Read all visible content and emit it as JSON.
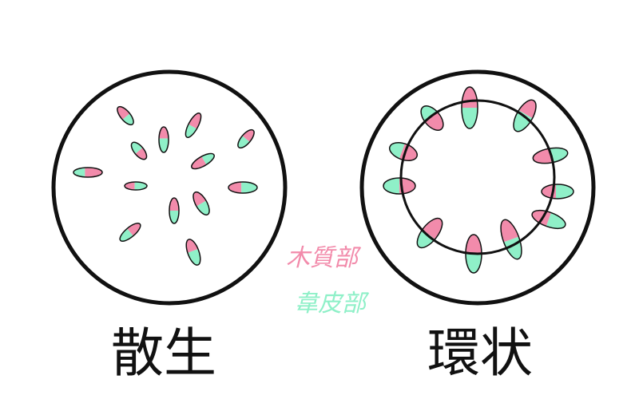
{
  "labels": {
    "scattered": "散生",
    "ring": "環状",
    "xylem": "木質部",
    "phloem": "韋皮部"
  },
  "colors": {
    "xylem": "#f28bab",
    "phloem": "#8ff0c8",
    "stroke": "#111111",
    "background": "#ffffff"
  },
  "diagrams": [
    {
      "name": "scattered",
      "bundle_count": 12
    },
    {
      "name": "ring",
      "bundle_count": 12
    }
  ]
}
